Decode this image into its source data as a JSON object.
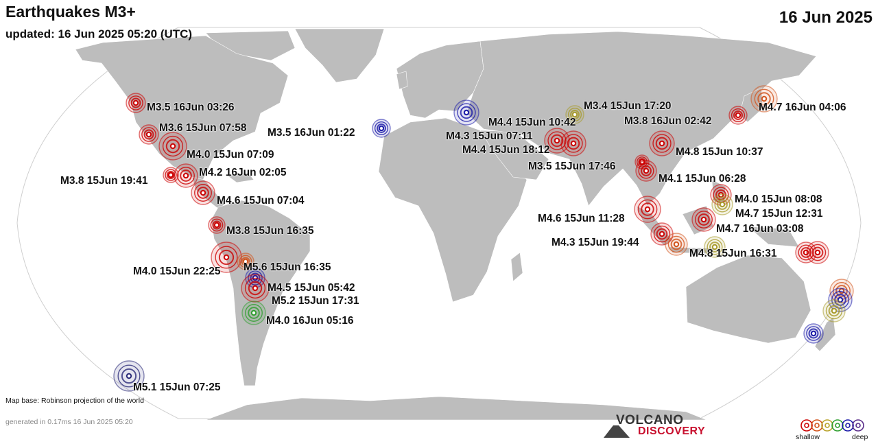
{
  "header": {
    "title": "Earthquakes M3+",
    "updated": "updated: 16 Jun 2025 05:20 (UTC)",
    "date": "16 Jun 2025"
  },
  "footer": {
    "map_base": "Map base: Robinson projection of the world",
    "generated": "generated in 0.17ms 16 Jun 2025 05:20"
  },
  "logo": {
    "line1": "VOLCANO",
    "line2": "DISCOVERY"
  },
  "legend": {
    "shallow": "shallow",
    "deep": "deep",
    "colors": [
      "#cc0000",
      "#d2541c",
      "#b8a22a",
      "#2e9e2e",
      "#1a1aa8",
      "#5a2d8a"
    ]
  },
  "depth_colors": {
    "red": "#cc0000",
    "orange": "#d2541c",
    "olive": "#a89a2a",
    "green": "#2e9e2e",
    "blue": "#1a1aa8",
    "navy": "#2a2a78",
    "purple": "#5a2d8a"
  },
  "labels": [
    "M3.5 16Jun 03:26",
    "M3.6 15Jun 07:58",
    "M4.0 15Jun 07:09",
    "M4.2 16Jun 02:05",
    "M3.8 15Jun 19:41",
    "M4.6 15Jun 07:04",
    "M3.8 15Jun 16:35",
    "M4.0 15Jun 22:25",
    "M5.6 15Jun 16:35",
    "M4.5 15Jun 05:42",
    "M5.2 15Jun 17:31",
    "M4.0 16Jun 05:16",
    "M5.1 15Jun 07:25",
    "M3.5 16Jun 01:22",
    "M4.4 15Jun 10:42",
    "M4.3 15Jun 07:11",
    "M4.4 15Jun 18:12",
    "M3.4 15Jun 17:20",
    "M3.8 16Jun 02:42",
    "M4.7 16Jun 04:06",
    "M4.8 15Jun 10:37",
    "M3.5 15Jun 17:46",
    "M4.1 15Jun 06:28",
    "M4.0 15Jun 08:08",
    "M4.7 15Jun 12:31",
    "M4.6 15Jun 11:28",
    "M4.7 16Jun 03:08",
    "M4.3 15Jun 19:44",
    "M4.8 15Jun 16:31"
  ],
  "quake_colors": [
    "red",
    "red",
    "red",
    "red",
    "red",
    "red",
    "red",
    "red",
    "orange",
    "blue",
    "red",
    "green",
    "navy",
    "blue",
    "blue",
    "olive",
    "red",
    "orange",
    "red",
    "red",
    "red",
    "red",
    "red",
    "red",
    "olive",
    "red",
    "red",
    "red",
    "orange",
    "olive",
    "red",
    "red",
    "orange",
    "blue",
    "olive",
    "blue",
    "purple",
    "purple",
    "olive",
    "olive"
  ]
}
